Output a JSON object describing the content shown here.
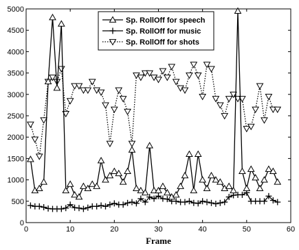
{
  "chart_data": {
    "type": "line",
    "title": "",
    "xlabel": "Frame",
    "ylabel": "",
    "xlim": [
      0,
      60
    ],
    "ylim": [
      0,
      5000
    ],
    "xticks": [
      0,
      10,
      20,
      30,
      40,
      50,
      60
    ],
    "yticks": [
      0,
      500,
      1000,
      1500,
      2000,
      2500,
      3000,
      3500,
      4000,
      4500,
      5000
    ],
    "grid": false,
    "legend_position": "top-center",
    "series": [
      {
        "name": "Sp. RollOff for speech",
        "marker": "triangle-up",
        "line": "solid",
        "color": "#000000",
        "x": [
          1,
          2,
          3,
          4,
          5,
          6,
          7,
          8,
          9,
          10,
          11,
          12,
          13,
          14,
          15,
          16,
          17,
          18,
          19,
          20,
          21,
          22,
          23,
          24,
          25,
          26,
          27,
          28,
          29,
          30,
          31,
          32,
          33,
          34,
          35,
          36,
          37,
          38,
          39,
          40,
          41,
          42,
          43,
          44,
          45,
          46,
          47,
          48,
          49,
          50,
          51,
          52,
          53,
          54,
          55,
          56,
          57
        ],
        "values": [
          1480,
          750,
          800,
          950,
          3300,
          4800,
          3150,
          4650,
          750,
          900,
          650,
          600,
          850,
          800,
          900,
          850,
          1450,
          1000,
          1100,
          1200,
          1150,
          950,
          1200,
          1700,
          800,
          750,
          700,
          1800,
          750,
          750,
          850,
          700,
          600,
          650,
          850,
          1100,
          1600,
          750,
          1600,
          1000,
          800,
          1100,
          1000,
          950,
          800,
          850,
          750,
          4950,
          1200,
          800,
          1250,
          1050,
          800,
          1000,
          1250,
          1200,
          950
        ]
      },
      {
        "name": "Sp. RollOff for music",
        "marker": "plus",
        "line": "solid",
        "color": "#000000",
        "x": [
          1,
          2,
          3,
          4,
          5,
          6,
          7,
          8,
          9,
          10,
          11,
          12,
          13,
          14,
          15,
          16,
          17,
          18,
          19,
          20,
          21,
          22,
          23,
          24,
          25,
          26,
          27,
          28,
          29,
          30,
          31,
          32,
          33,
          34,
          35,
          36,
          37,
          38,
          39,
          40,
          41,
          42,
          43,
          44,
          45,
          46,
          47,
          48,
          49,
          50,
          51,
          52,
          53,
          54,
          55,
          56,
          57
        ],
        "values": [
          400,
          380,
          380,
          360,
          330,
          320,
          320,
          320,
          340,
          420,
          350,
          340,
          320,
          350,
          380,
          380,
          400,
          380,
          420,
          450,
          420,
          420,
          460,
          480,
          450,
          560,
          480,
          600,
          560,
          620,
          560,
          550,
          500,
          500,
          480,
          480,
          500,
          460,
          450,
          500,
          480,
          460,
          440,
          460,
          480,
          600,
          640,
          650,
          650,
          700,
          500,
          500,
          500,
          500,
          620,
          520,
          480
        ]
      },
      {
        "name": "Sp. RollOff for shots",
        "marker": "triangle-down",
        "line": "dotted",
        "color": "#000000",
        "x": [
          1,
          2,
          3,
          4,
          5,
          6,
          7,
          8,
          9,
          10,
          11,
          12,
          13,
          14,
          15,
          16,
          17,
          18,
          19,
          20,
          21,
          22,
          23,
          24,
          25,
          26,
          27,
          28,
          29,
          30,
          31,
          32,
          33,
          34,
          35,
          36,
          37,
          38,
          39,
          40,
          41,
          42,
          43,
          44,
          45,
          46,
          47,
          48,
          49,
          50,
          51,
          52,
          53,
          54,
          55,
          56,
          57
        ],
        "values": [
          2300,
          1950,
          1550,
          2400,
          3300,
          3400,
          3300,
          3600,
          2550,
          2850,
          3200,
          3200,
          3100,
          3100,
          3300,
          3100,
          3050,
          2750,
          1850,
          2650,
          3100,
          2900,
          2600,
          1850,
          3450,
          3400,
          3500,
          3500,
          3400,
          3350,
          3550,
          3400,
          3650,
          3300,
          3150,
          3100,
          3450,
          3700,
          3450,
          2950,
          3700,
          3600,
          2900,
          2750,
          2500,
          2900,
          3000,
          2900,
          2900,
          2200,
          2250,
          2650,
          3200,
          2400,
          2950,
          2650,
          2650
        ]
      }
    ]
  }
}
